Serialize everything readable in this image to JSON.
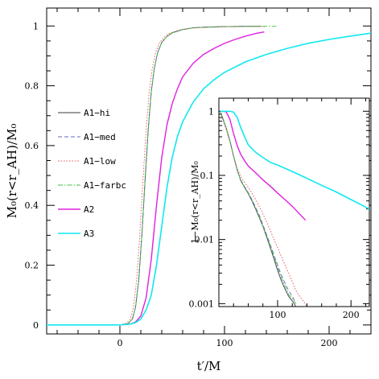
{
  "chart_data": [
    {
      "type": "line",
      "xlabel": "t′/M",
      "ylabel": "M₀(r<r_AH)/M₀",
      "xlim": [
        -70,
        240
      ],
      "ylim": [
        -0.03,
        1.06
      ],
      "xticks": [
        0,
        100,
        200
      ],
      "yticks": [
        0,
        0.2,
        0.4,
        0.6,
        0.8,
        1
      ],
      "ytick_labels": [
        "0",
        "0.2",
        "0.4",
        "0.6",
        "0.8",
        "1"
      ],
      "grid": false,
      "legend_position": "left-middle",
      "series": [
        {
          "name": "A1−hi",
          "color": "#3a3a3a",
          "dash": "solid",
          "width": 0.9,
          "x": [
            -70,
            0,
            8,
            12,
            15,
            18,
            21,
            24,
            27,
            30,
            33,
            36,
            40,
            45,
            50,
            60,
            70,
            80,
            100,
            120,
            135
          ],
          "y": [
            0,
            0,
            0.005,
            0.02,
            0.06,
            0.15,
            0.3,
            0.48,
            0.65,
            0.78,
            0.86,
            0.91,
            0.945,
            0.965,
            0.977,
            0.988,
            0.994,
            0.996,
            0.998,
            0.999,
            0.999
          ]
        },
        {
          "name": "A1−med",
          "color": "#6464c8",
          "dash": "5,3",
          "width": 0.9,
          "x": [
            -70,
            0,
            8,
            12,
            15,
            18,
            21,
            24,
            27,
            30,
            33,
            36,
            40,
            45,
            50,
            60,
            70,
            80,
            100,
            120,
            135
          ],
          "y": [
            0,
            0,
            0.005,
            0.02,
            0.06,
            0.15,
            0.3,
            0.48,
            0.65,
            0.78,
            0.86,
            0.91,
            0.945,
            0.965,
            0.977,
            0.988,
            0.994,
            0.996,
            0.998,
            0.999,
            0.999
          ]
        },
        {
          "name": "A1−low",
          "color": "#e05050",
          "dash": "1.5,2",
          "width": 0.9,
          "x": [
            -70,
            0,
            6,
            10,
            13,
            16,
            19,
            22,
            25,
            28,
            31,
            34,
            38,
            43,
            48,
            58,
            68,
            80,
            100,
            120,
            140
          ],
          "y": [
            0,
            0,
            0.005,
            0.02,
            0.06,
            0.15,
            0.3,
            0.48,
            0.65,
            0.78,
            0.86,
            0.91,
            0.945,
            0.965,
            0.977,
            0.988,
            0.993,
            0.995,
            0.997,
            0.998,
            0.998
          ]
        },
        {
          "name": "A1−farbc",
          "color": "#40c040",
          "dash": "6,2,1.5,2",
          "width": 0.9,
          "x": [
            -70,
            0,
            8,
            12,
            15,
            18,
            21,
            24,
            27,
            30,
            33,
            36,
            40,
            45,
            50,
            60,
            70,
            80,
            100,
            120,
            150
          ],
          "y": [
            0,
            0,
            0.005,
            0.02,
            0.06,
            0.15,
            0.3,
            0.48,
            0.65,
            0.78,
            0.86,
            0.91,
            0.945,
            0.965,
            0.977,
            0.988,
            0.994,
            0.996,
            0.998,
            0.999,
            0.999
          ]
        },
        {
          "name": "A2",
          "color": "#e020e0",
          "dash": "solid",
          "width": 1.4,
          "x": [
            -70,
            0,
            10,
            15,
            20,
            25,
            30,
            35,
            40,
            45,
            50,
            55,
            60,
            70,
            80,
            90,
            100,
            110,
            120,
            130,
            138
          ],
          "y": [
            0,
            0,
            0.003,
            0.01,
            0.03,
            0.09,
            0.22,
            0.4,
            0.56,
            0.67,
            0.74,
            0.79,
            0.83,
            0.875,
            0.905,
            0.925,
            0.942,
            0.955,
            0.966,
            0.975,
            0.98
          ]
        },
        {
          "name": "A3",
          "color": "#10e8f0",
          "dash": "solid",
          "width": 1.6,
          "x": [
            -70,
            0,
            10,
            15,
            20,
            25,
            30,
            35,
            40,
            45,
            50,
            55,
            60,
            70,
            80,
            90,
            100,
            120,
            140,
            160,
            180,
            200,
            220,
            240
          ],
          "y": [
            0,
            0,
            0.003,
            0.008,
            0.02,
            0.05,
            0.1,
            0.2,
            0.33,
            0.46,
            0.56,
            0.63,
            0.68,
            0.745,
            0.79,
            0.82,
            0.845,
            0.88,
            0.905,
            0.925,
            0.942,
            0.955,
            0.966,
            0.976
          ]
        }
      ]
    },
    {
      "type": "line",
      "inset": true,
      "ylabel": "1−M₀(r<r_AH)/M₀",
      "log_y": true,
      "xlim": [
        20,
        225
      ],
      "ylim": [
        0.0009,
        1.6
      ],
      "xticks": [
        100,
        200
      ],
      "yticks": [
        1,
        0.1,
        0.01,
        0.001
      ],
      "ytick_labels": [
        "1",
        "0.1",
        "0.01",
        "0.001"
      ],
      "series": [
        {
          "name": "A1−hi",
          "color": "#3a3a3a",
          "dash": "solid",
          "width": 0.9,
          "x": [
            22,
            25,
            30,
            35,
            40,
            45,
            50,
            55,
            60,
            65,
            70,
            75,
            80,
            85,
            90,
            95,
            100,
            105,
            110,
            115,
            120,
            125
          ],
          "y": [
            0.97,
            0.8,
            0.55,
            0.35,
            0.2,
            0.12,
            0.082,
            0.065,
            0.052,
            0.04,
            0.03,
            0.022,
            0.016,
            0.011,
            0.0075,
            0.005,
            0.0033,
            0.0023,
            0.0017,
            0.0013,
            0.0011,
            0.0009
          ]
        },
        {
          "name": "A1−med",
          "color": "#6464c8",
          "dash": "5,3",
          "width": 0.9,
          "x": [
            22,
            25,
            30,
            35,
            40,
            45,
            50,
            55,
            60,
            65,
            70,
            75,
            80,
            85,
            90,
            95,
            100,
            105,
            110,
            115,
            120,
            125
          ],
          "y": [
            0.97,
            0.8,
            0.55,
            0.35,
            0.2,
            0.12,
            0.084,
            0.067,
            0.054,
            0.042,
            0.032,
            0.024,
            0.017,
            0.012,
            0.0083,
            0.0058,
            0.004,
            0.0028,
            0.0021,
            0.0016,
            0.0013,
            0.001
          ]
        },
        {
          "name": "A1−low",
          "color": "#e05050",
          "dash": "1.5,2",
          "width": 0.9,
          "x": [
            22,
            25,
            30,
            35,
            40,
            45,
            50,
            55,
            60,
            65,
            70,
            75,
            80,
            85,
            90,
            95,
            100,
            105,
            110,
            115,
            120,
            125,
            130,
            135,
            140
          ],
          "y": [
            0.95,
            0.75,
            0.52,
            0.33,
            0.2,
            0.13,
            0.095,
            0.078,
            0.065,
            0.053,
            0.042,
            0.033,
            0.025,
            0.019,
            0.014,
            0.01,
            0.0075,
            0.0055,
            0.004,
            0.003,
            0.0022,
            0.0016,
            0.0013,
            0.0011,
            0.0009
          ]
        },
        {
          "name": "A1−farbc",
          "color": "#40c040",
          "dash": "6,2,1.5,2",
          "width": 0.9,
          "x": [
            22,
            25,
            30,
            35,
            40,
            45,
            50,
            55,
            60,
            65,
            70,
            75,
            80,
            85,
            90,
            95,
            100,
            105,
            110,
            115,
            120,
            125
          ],
          "y": [
            0.97,
            0.8,
            0.55,
            0.35,
            0.2,
            0.12,
            0.083,
            0.066,
            0.053,
            0.041,
            0.031,
            0.023,
            0.016,
            0.0115,
            0.0079,
            0.0054,
            0.0037,
            0.0026,
            0.0019,
            0.0014,
            0.0012,
            0.001
          ]
        },
        {
          "name": "A2",
          "color": "#e020e0",
          "dash": "solid",
          "width": 1.4,
          "x": [
            22,
            25,
            30,
            35,
            40,
            45,
            50,
            55,
            60,
            70,
            80,
            90,
            100,
            110,
            120,
            130,
            138
          ],
          "y": [
            1.0,
            1.0,
            0.98,
            0.75,
            0.45,
            0.29,
            0.21,
            0.17,
            0.14,
            0.11,
            0.085,
            0.068,
            0.053,
            0.042,
            0.033,
            0.025,
            0.02
          ]
        },
        {
          "name": "A3",
          "color": "#10e8f0",
          "dash": "solid",
          "width": 1.6,
          "x": [
            22,
            25,
            30,
            35,
            40,
            45,
            50,
            55,
            60,
            70,
            80,
            90,
            100,
            120,
            140,
            160,
            180,
            200,
            220,
            225
          ],
          "y": [
            1.0,
            1.0,
            1.0,
            1.0,
            0.97,
            0.8,
            0.55,
            0.4,
            0.3,
            0.23,
            0.19,
            0.16,
            0.145,
            0.115,
            0.09,
            0.07,
            0.055,
            0.042,
            0.032,
            0.03
          ]
        }
      ]
    }
  ]
}
